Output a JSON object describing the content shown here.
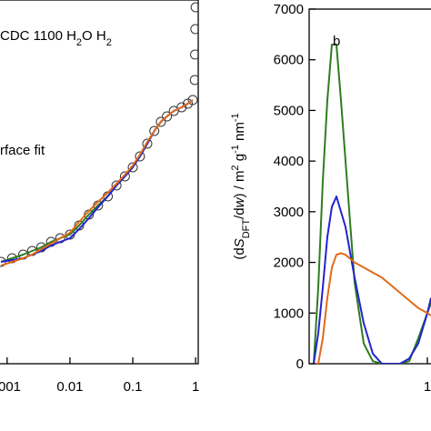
{
  "chart_data": [
    {
      "type": "line",
      "annotations": [
        [
          "CDC 1100 H",
          "2",
          "O H",
          "2"
        ],
        [
          "rface fit"
        ]
      ],
      "xscale": "log",
      "xlim": [
        0.00077,
        1.1
      ],
      "ylim": [
        0,
        1
      ],
      "xticks": [
        {
          "value": 0.001,
          "label": "001"
        },
        0.01,
        0.1,
        1
      ],
      "series": [
        {
          "style": "markers",
          "color": "#333333",
          "x": [
            0.0008,
            0.0012,
            0.0018,
            0.0025,
            0.0035,
            0.005,
            0.007,
            0.01,
            0.014,
            0.02,
            0.028,
            0.04,
            0.055,
            0.075,
            0.1,
            0.13,
            0.17,
            0.22,
            0.28,
            0.35,
            0.45,
            0.6,
            0.75,
            0.9,
            0.97,
            0.98,
            0.99,
            1.0
          ],
          "values": [
            0.28,
            0.29,
            0.3,
            0.31,
            0.32,
            0.335,
            0.345,
            0.355,
            0.38,
            0.41,
            0.435,
            0.46,
            0.49,
            0.515,
            0.54,
            0.57,
            0.605,
            0.64,
            0.665,
            0.68,
            0.695,
            0.705,
            0.715,
            0.725,
            0.78,
            0.85,
            0.92,
            0.98
          ]
        },
        {
          "style": "line",
          "color": "#2e7d1f",
          "x": [
            0.0008,
            0.0012,
            0.0018,
            0.0025,
            0.0035,
            0.005,
            0.007,
            0.01,
            0.014,
            0.02,
            0.028,
            0.04,
            0.055,
            0.075,
            0.1,
            0.13,
            0.17,
            0.22,
            0.28,
            0.35,
            0.45,
            0.6,
            0.75,
            0.9
          ],
          "values": [
            0.28,
            0.29,
            0.3,
            0.31,
            0.32,
            0.335,
            0.345,
            0.355,
            0.38,
            0.41,
            0.435,
            0.46,
            0.49,
            0.515,
            0.54,
            0.57,
            0.605,
            0.64,
            0.665,
            0.68,
            0.695,
            0.705,
            0.715,
            0.725
          ]
        },
        {
          "style": "line",
          "color": "#2323d0",
          "x": [
            0.0008,
            0.0012,
            0.0018,
            0.0025,
            0.0035,
            0.005,
            0.007,
            0.01,
            0.014,
            0.02,
            0.028,
            0.04,
            0.055,
            0.075,
            0.1,
            0.13,
            0.17,
            0.22,
            0.28,
            0.35,
            0.45,
            0.6,
            0.75,
            0.9
          ],
          "values": [
            0.28,
            0.285,
            0.29,
            0.3,
            0.31,
            0.325,
            0.335,
            0.345,
            0.37,
            0.4,
            0.43,
            0.46,
            0.49,
            0.515,
            0.54,
            0.57,
            0.605,
            0.64,
            0.665,
            0.68,
            0.695,
            0.705,
            0.715,
            0.725
          ]
        },
        {
          "style": "line",
          "color": "#e06a1b",
          "x": [
            0.0008,
            0.0012,
            0.0018,
            0.0025,
            0.0035,
            0.005,
            0.007,
            0.01,
            0.014,
            0.02,
            0.028,
            0.04,
            0.055,
            0.075,
            0.1,
            0.13,
            0.17,
            0.22,
            0.28,
            0.35,
            0.45,
            0.6,
            0.75,
            0.9
          ],
          "values": [
            0.27,
            0.28,
            0.29,
            0.3,
            0.315,
            0.33,
            0.345,
            0.36,
            0.39,
            0.42,
            0.445,
            0.47,
            0.495,
            0.52,
            0.545,
            0.575,
            0.61,
            0.64,
            0.665,
            0.68,
            0.695,
            0.705,
            0.715,
            0.725
          ]
        }
      ]
    },
    {
      "type": "line",
      "annotations": [
        [
          "b"
        ]
      ],
      "ylabel": [
        "(d",
        "S",
        "DFT",
        "/d",
        "w",
        ") / m",
        "2",
        " g",
        "-1",
        " nm",
        "-1"
      ],
      "xlim": [
        0.35,
        1.02
      ],
      "ylim": [
        0,
        7000
      ],
      "xticks": [
        1
      ],
      "yticks": [
        0,
        1000,
        2000,
        3000,
        4000,
        5000,
        6000,
        7000
      ],
      "x": [
        0.375,
        0.4,
        0.425,
        0.45,
        0.475,
        0.5,
        0.525,
        0.55,
        0.6,
        0.65,
        0.7,
        0.75,
        0.8,
        0.85,
        0.9,
        0.95,
        1.0,
        1.02
      ],
      "series": [
        {
          "style": "line",
          "color": "#2e7d1f",
          "values": [
            0,
            1500,
            3600,
            5200,
            6300,
            6300,
            5200,
            4000,
            1600,
            400,
            50,
            0,
            0,
            0,
            50,
            500,
            1000,
            1200
          ]
        },
        {
          "style": "line",
          "color": "#2323d0",
          "values": [
            0,
            600,
            1500,
            2500,
            3100,
            3300,
            3000,
            2700,
            1700,
            800,
            200,
            0,
            0,
            0,
            100,
            400,
            1000,
            1300
          ]
        },
        {
          "style": "line",
          "color": "#e06a1b",
          "values": [
            0,
            0,
            500,
            1300,
            1900,
            2150,
            2180,
            2150,
            2000,
            1900,
            1800,
            1700,
            1550,
            1400,
            1250,
            1100,
            1000,
            950
          ]
        }
      ]
    }
  ]
}
